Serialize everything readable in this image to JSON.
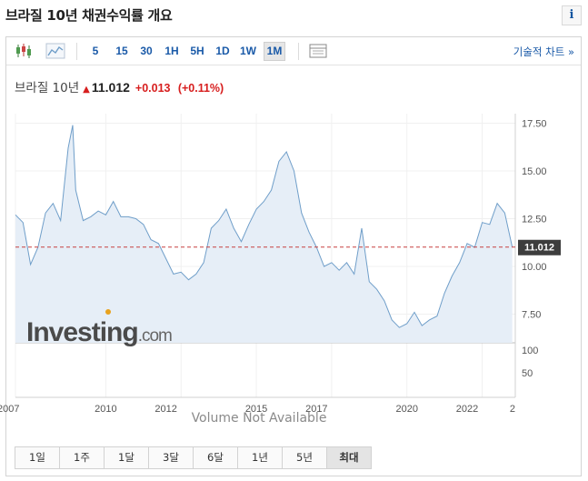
{
  "header": {
    "title": "브라질 10년 채권수익률 개요",
    "info_label": "i"
  },
  "toolbar": {
    "intervals": [
      "5",
      "15",
      "30",
      "1H",
      "5H",
      "1D",
      "1W",
      "1M"
    ],
    "active_interval": "1M",
    "tech_chart_link": "기술적 차트 »"
  },
  "quote": {
    "name": "브라질 10년",
    "price": "11.012",
    "change": "+0.013",
    "change_pct": "(+0.11%)",
    "direction_icon": "up-arrow-icon"
  },
  "chart_data": {
    "type": "area",
    "x": [
      2007.0,
      2007.25,
      2007.5,
      2007.75,
      2008.0,
      2008.25,
      2008.5,
      2008.75,
      2008.9,
      2009.0,
      2009.25,
      2009.5,
      2009.75,
      2010.0,
      2010.25,
      2010.5,
      2010.75,
      2011.0,
      2011.25,
      2011.5,
      2011.75,
      2012.0,
      2012.25,
      2012.5,
      2012.75,
      2013.0,
      2013.25,
      2013.5,
      2013.75,
      2014.0,
      2014.25,
      2014.5,
      2014.75,
      2015.0,
      2015.25,
      2015.5,
      2015.75,
      2016.0,
      2016.25,
      2016.5,
      2016.75,
      2017.0,
      2017.25,
      2017.5,
      2017.75,
      2018.0,
      2018.25,
      2018.5,
      2018.75,
      2019.0,
      2019.25,
      2019.5,
      2019.75,
      2020.0,
      2020.25,
      2020.5,
      2020.75,
      2021.0,
      2021.25,
      2021.5,
      2021.75,
      2022.0,
      2022.25,
      2022.5,
      2022.75,
      2023.0,
      2023.25,
      2023.5
    ],
    "y": [
      12.7,
      12.3,
      10.1,
      11.0,
      12.8,
      13.3,
      12.4,
      16.2,
      17.4,
      14.0,
      12.4,
      12.6,
      12.9,
      12.7,
      13.4,
      12.6,
      12.6,
      12.5,
      12.2,
      11.4,
      11.2,
      10.4,
      9.6,
      9.7,
      9.3,
      9.6,
      10.2,
      12.0,
      12.4,
      13.0,
      12.0,
      11.3,
      12.2,
      13.0,
      13.4,
      14.0,
      15.5,
      16.0,
      15.0,
      12.8,
      11.8,
      11.0,
      10.0,
      10.2,
      9.8,
      10.2,
      9.6,
      12.0,
      9.2,
      8.8,
      8.2,
      7.2,
      6.8,
      7.0,
      7.6,
      6.9,
      7.2,
      7.4,
      8.6,
      9.5,
      10.2,
      11.2,
      11.0,
      12.3,
      12.2,
      13.3,
      12.8,
      11.0
    ],
    "current_value": "11.012",
    "y_ticks": [
      "17.50",
      "15.00",
      "12.50",
      "10.00",
      "7.50"
    ],
    "volume_ticks": [
      "100",
      "50"
    ],
    "x_ticks": [
      "2007",
      "2010",
      "2012",
      "2015",
      "2017",
      "2020",
      "2022",
      "2"
    ],
    "volume_note": "Volume Not Available",
    "watermark": "Investing.com",
    "grid": true,
    "colors": {
      "line": "#6f9ec9",
      "fill": "#e6eef7",
      "price_marker": "#3d3d3d",
      "reference_line": "#c74141"
    }
  },
  "range_buttons": [
    "1일",
    "1주",
    "1달",
    "3달",
    "6달",
    "1년",
    "5년",
    "최대"
  ],
  "active_range": "최대"
}
